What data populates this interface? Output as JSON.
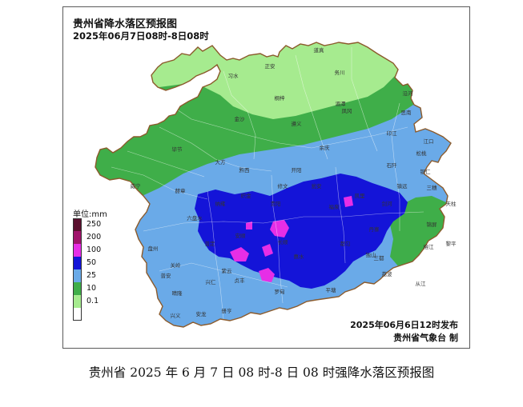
{
  "map": {
    "title": "贵州省降水落区预报图",
    "subtitle": "2025年06月7日08时-8日08时",
    "issue_time": "2025年06月6日12时发布",
    "issuer": "贵州省气象台 制"
  },
  "legend": {
    "title": "单位:mm",
    "items": [
      {
        "label": "250",
        "color": "#5a0f2e"
      },
      {
        "label": "200",
        "color": "#a0136b"
      },
      {
        "label": "100",
        "color": "#e62ee6"
      },
      {
        "label": "50",
        "color": "#1414d8"
      },
      {
        "label": "25",
        "color": "#6aaae8"
      },
      {
        "label": "10",
        "color": "#3fae49"
      },
      {
        "label": "0.1",
        "color": "#a6eb8f"
      },
      {
        "label": "",
        "color": "#ffffff"
      }
    ]
  },
  "colors": {
    "light_green": "#a6eb8f",
    "green": "#3fae49",
    "light_blue": "#6aaae8",
    "blue": "#1414d8",
    "magenta": "#e62ee6",
    "border": "#8b5a2b"
  },
  "place_labels": [
    "道真",
    "正安",
    "务川",
    "习水",
    "桐梓",
    "沿河",
    "湄潭",
    "凤冈",
    "思南",
    "印江",
    "松桃",
    "遵义",
    "余庆",
    "石阡",
    "江口",
    "铜仁",
    "毕节",
    "大方",
    "黔西",
    "开阳",
    "瓮安",
    "镇远",
    "三穗",
    "天柱",
    "威宁",
    "赫章",
    "纳雍",
    "织金",
    "修文",
    "贵阳",
    "福泉",
    "凯里",
    "剑河",
    "锦屏",
    "六盘水",
    "普定",
    "安顺",
    "长顺",
    "都匀",
    "丹寨",
    "榕江",
    "盘州",
    "关岭",
    "紫云",
    "惠水",
    "独山",
    "三都",
    "荔波",
    "黎平",
    "普安",
    "晴隆",
    "兴仁",
    "贞丰",
    "罗甸",
    "平塘",
    "兴义",
    "安龙",
    "册亨",
    "从江",
    "金沙"
  ],
  "caption": "贵州省 2025 年 6 月 7 日 08 时-8 日 08 时强降水落区预报图"
}
